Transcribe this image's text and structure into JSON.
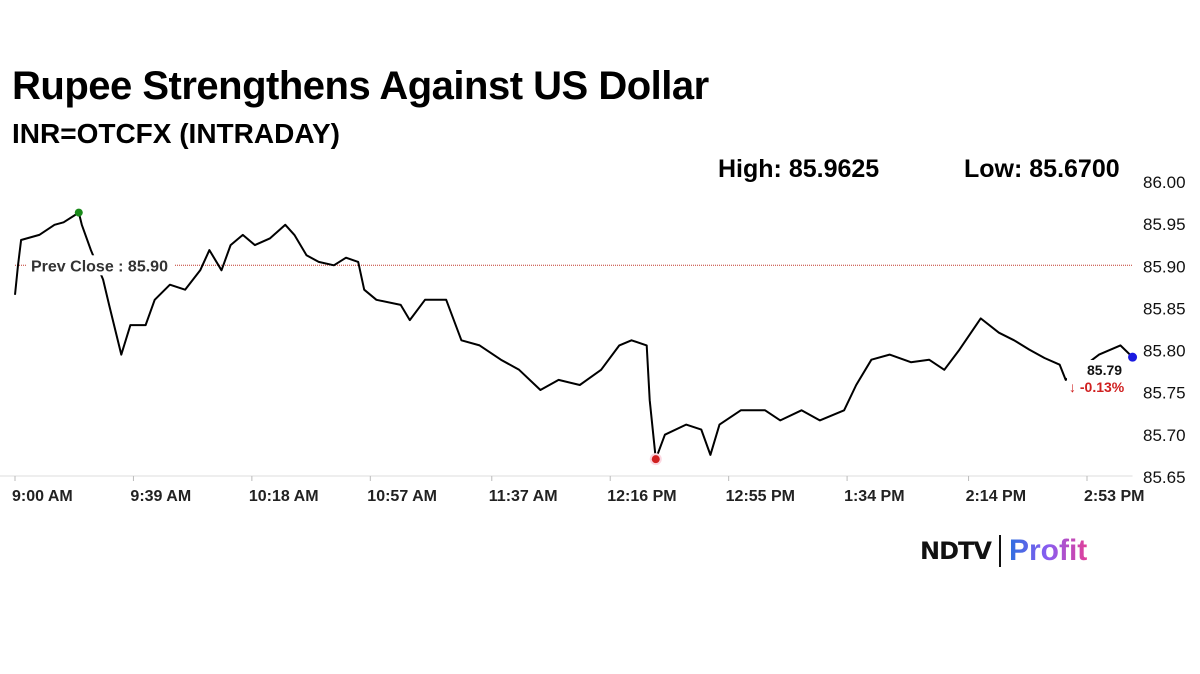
{
  "chart_data": {
    "type": "line",
    "title": "Rupee Strengthens Against US Dollar",
    "subtitle": "INR=OTCFX (INTRADAY)",
    "high_label": "High: 85.9625",
    "low_label": "Low: 85.6700",
    "ylim": [
      85.65,
      86.0
    ],
    "y_ticks": [
      "86.00",
      "85.95",
      "85.90",
      "85.85",
      "85.80",
      "85.75",
      "85.70",
      "85.65"
    ],
    "x_range": [
      "9:00",
      "15:08"
    ],
    "x_ticks": [
      {
        "t": "9:00",
        "label": "9:00 AM"
      },
      {
        "t": "9:39",
        "label": "9:39 AM"
      },
      {
        "t": "10:18",
        "label": "10:18 AM"
      },
      {
        "t": "10:57",
        "label": "10:57 AM"
      },
      {
        "t": "11:37",
        "label": "11:37 AM"
      },
      {
        "t": "12:16",
        "label": "12:16 PM"
      },
      {
        "t": "12:55",
        "label": "12:55 PM"
      },
      {
        "t": "13:34",
        "label": "1:34 PM"
      },
      {
        "t": "14:14",
        "label": "2:14 PM"
      },
      {
        "t": "14:53",
        "label": "2:53 PM"
      }
    ],
    "prev_close": 85.9,
    "prev_close_label": "Prev Close : 85.90",
    "last_value_label": "85.79",
    "change_label": "↓ -0.13%",
    "grid": false,
    "colors": {
      "line": "#000000",
      "high": "#1a8a1a",
      "low": "#d02020",
      "last": "#1a1ae0",
      "prev_close": "#c0392b",
      "change": "#d02020"
    },
    "x": [
      "9:00",
      "9:01",
      "9:02",
      "9:08",
      "9:13",
      "9:16",
      "9:21",
      "9:22",
      "9:25",
      "9:29",
      "9:31",
      "9:35",
      "9:38",
      "9:43",
      "9:46",
      "9:51",
      "9:56",
      "10:01",
      "10:04",
      "10:08",
      "10:11",
      "10:15",
      "10:19",
      "10:24",
      "10:29",
      "10:32",
      "10:36",
      "10:40",
      "10:45",
      "10:49",
      "10:53",
      "10:55",
      "10:59",
      "11:07",
      "11:10",
      "11:15",
      "11:22",
      "11:27",
      "11:33",
      "11:40",
      "11:46",
      "11:53",
      "11:59",
      "12:06",
      "12:13",
      "12:19",
      "12:23",
      "12:28",
      "12:29",
      "12:31",
      "12:34",
      "12:41",
      "12:46",
      "12:49",
      "12:52",
      "12:59",
      "13:07",
      "13:12",
      "13:19",
      "13:25",
      "13:33",
      "13:37",
      "13:42",
      "13:48",
      "13:55",
      "14:01",
      "14:06",
      "14:11",
      "14:18",
      "14:24",
      "14:29",
      "14:34",
      "14:39",
      "14:44",
      "14:46",
      "14:57",
      "15:04",
      "15:08"
    ],
    "y": [
      85.865,
      85.9,
      85.93,
      85.936,
      85.948,
      85.951,
      85.9625,
      85.948,
      85.918,
      85.883,
      85.853,
      85.794,
      85.829,
      85.829,
      85.859,
      85.877,
      85.871,
      85.894,
      85.918,
      85.894,
      85.924,
      85.936,
      85.924,
      85.932,
      85.948,
      85.936,
      85.912,
      85.904,
      85.9,
      85.909,
      85.904,
      85.871,
      85.859,
      85.853,
      85.835,
      85.859,
      85.859,
      85.811,
      85.805,
      85.788,
      85.776,
      85.752,
      85.764,
      85.758,
      85.776,
      85.805,
      85.811,
      85.805,
      85.74,
      85.67,
      85.699,
      85.711,
      85.705,
      85.675,
      85.711,
      85.728,
      85.728,
      85.716,
      85.728,
      85.716,
      85.728,
      85.758,
      85.788,
      85.794,
      85.785,
      85.788,
      85.776,
      85.8,
      85.837,
      85.82,
      85.811,
      85.8,
      85.79,
      85.782,
      85.764,
      85.794,
      85.805,
      85.791
    ]
  },
  "branding": {
    "left": "NDTV",
    "right": "Profit"
  }
}
